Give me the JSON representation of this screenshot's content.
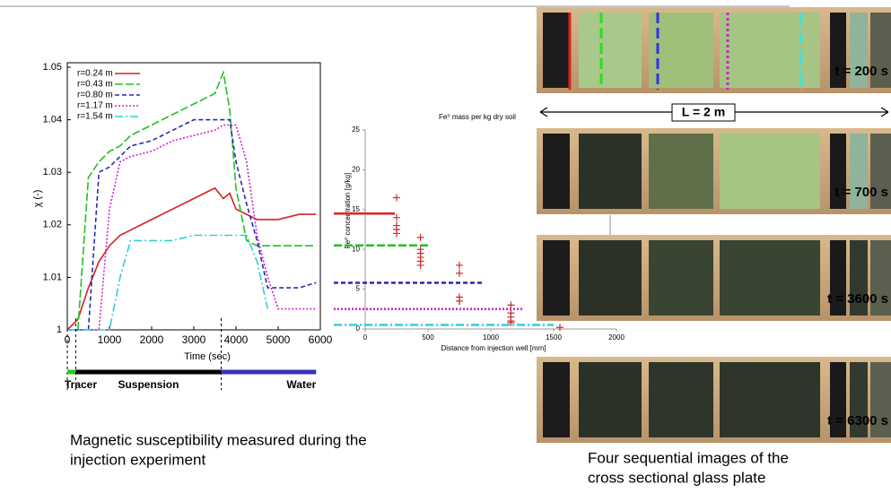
{
  "chart_data": [
    {
      "type": "line",
      "x_label": "Time (sec)",
      "y_label": "χ (-)",
      "x": [
        0,
        250,
        500,
        750,
        1000,
        1250,
        1500,
        2000,
        2500,
        3000,
        3500,
        3700,
        3850,
        4000,
        4250,
        4500,
        4750,
        5000,
        5500,
        5900
      ],
      "series": [
        {
          "name": "r=0.24 m",
          "color": "#d62020",
          "values": [
            1.0,
            1.002,
            1.008,
            1.013,
            1.016,
            1.018,
            1.019,
            1.021,
            1.023,
            1.025,
            1.027,
            1.025,
            1.026,
            1.023,
            1.022,
            1.021,
            1.021,
            1.021,
            1.022,
            1.022
          ]
        },
        {
          "name": "r=0.43 m",
          "color": "#22c022",
          "values": [
            1.0,
            1.0,
            1.029,
            1.032,
            1.034,
            1.035,
            1.037,
            1.039,
            1.041,
            1.043,
            1.045,
            1.049,
            1.042,
            1.027,
            1.017,
            1.016,
            1.016,
            1.016,
            1.016,
            1.016
          ]
        },
        {
          "name": "r=0.80 m",
          "color": "#2a2ab0",
          "values": [
            1.0,
            1.0,
            1.0,
            1.03,
            1.031,
            1.033,
            1.035,
            1.036,
            1.038,
            1.04,
            1.04,
            1.04,
            1.04,
            1.032,
            1.024,
            1.017,
            1.008,
            1.008,
            1.008,
            1.009
          ]
        },
        {
          "name": "r=1.17 m",
          "color": "#d020d0",
          "values": [
            1.0,
            1.0,
            1.0,
            1.0,
            1.023,
            1.032,
            1.033,
            1.034,
            1.036,
            1.037,
            1.038,
            1.039,
            1.039,
            1.039,
            1.032,
            1.018,
            1.01,
            1.004,
            1.004,
            1.004
          ]
        },
        {
          "name": "r=1.54 m",
          "color": "#30d0d8",
          "values": [
            1.0,
            1.0,
            1.0,
            1.0,
            1.0,
            1.01,
            1.017,
            1.017,
            1.017,
            1.018,
            1.018,
            1.018,
            1.018,
            1.018,
            1.018,
            1.013,
            1.004,
            null,
            null,
            null
          ]
        }
      ],
      "xlim": [
        0,
        6000
      ],
      "xticks": [
        0,
        1000,
        2000,
        3000,
        4000,
        5000,
        6000
      ],
      "ylim": [
        1,
        1.05
      ],
      "yticks": [
        1,
        1.01,
        1.02,
        1.03,
        1.04,
        1.05
      ],
      "legend": "top-left",
      "phases": [
        {
          "label": "Tracer",
          "start": 0,
          "end": 200,
          "color": "#22cc22"
        },
        {
          "label": "Suspension",
          "start": 200,
          "end": 3650,
          "color": "#000000"
        },
        {
          "label": "Water",
          "start": 3650,
          "end": 5900,
          "color": "#3333bb"
        }
      ]
    },
    {
      "type": "scatter",
      "title": "Fe⁰ mass per kg dry soil",
      "x_label": "Distance from injection well [mm]",
      "y_label": "Fe⁰ concentration [g/kg]",
      "color": "#c83030",
      "x": [
        250,
        250,
        250,
        250,
        250,
        440,
        440,
        440,
        440,
        440,
        440,
        750,
        750,
        750,
        750,
        750,
        1160,
        1160,
        1160,
        1160,
        1160,
        1550
      ],
      "values": [
        16.5,
        14,
        13,
        12.5,
        12,
        11.5,
        10,
        9.5,
        9,
        8.5,
        8,
        8,
        7,
        4,
        3.5,
        3.5,
        3,
        2,
        1.5,
        1,
        0.8,
        0.2
      ],
      "xlim": [
        0,
        2000
      ],
      "xticks": [
        0,
        500,
        1000,
        1500,
        2000
      ],
      "ylim": [
        0,
        25
      ],
      "yticks": [
        0,
        5,
        10,
        15,
        20,
        25
      ],
      "lines": [
        {
          "color": "#e02020",
          "value": 14.5,
          "x": [
            -250,
            236
          ]
        },
        {
          "color": "#22c022",
          "value": 10.5,
          "x": [
            -250,
            520
          ]
        },
        {
          "color": "#2a2ab0",
          "value": 5.8,
          "x": [
            -250,
            950
          ]
        },
        {
          "color": "#d020d0",
          "value": 2.5,
          "x": [
            -250,
            1250
          ]
        },
        {
          "color": "#30d0d8",
          "value": 0.5,
          "x": [
            -250,
            1500
          ]
        }
      ]
    }
  ],
  "photos": {
    "length_label": "L = 2 m",
    "times": [
      "t = 200 s",
      "t = 700 s",
      "t = 3600 s",
      "t = 6300 s"
    ]
  },
  "captions": {
    "left": [
      "Magnetic susceptibility measured during the",
      "injection experiment"
    ],
    "right": [
      "Four sequential images of the",
      "cross sectional glass plate"
    ]
  }
}
